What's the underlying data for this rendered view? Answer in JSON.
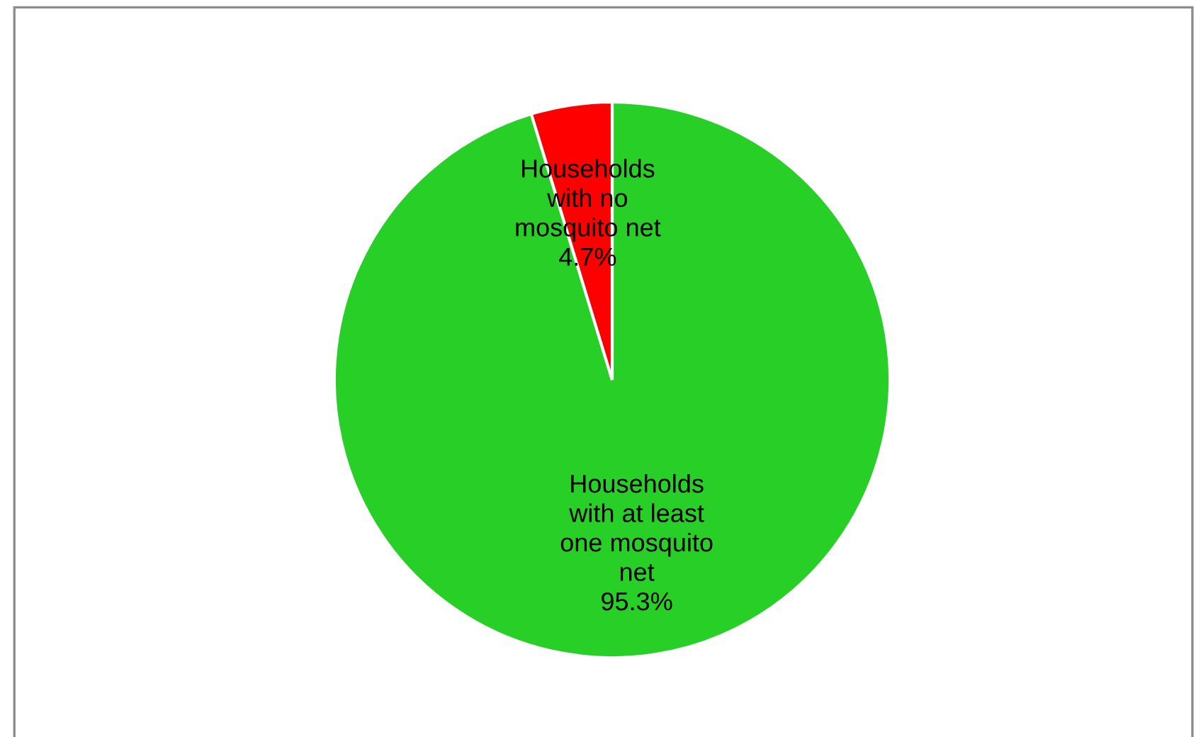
{
  "chart_data": {
    "type": "pie",
    "categories": [
      "Households\nwith at least\none mosquito\nnet",
      "Households\nwith no\nmosquito net"
    ],
    "values": [
      95.3,
      4.7
    ],
    "colors": [
      "#27cf27",
      "#ff0000"
    ],
    "value_labels": [
      "95.3%",
      "4.7%"
    ],
    "legend": false
  }
}
